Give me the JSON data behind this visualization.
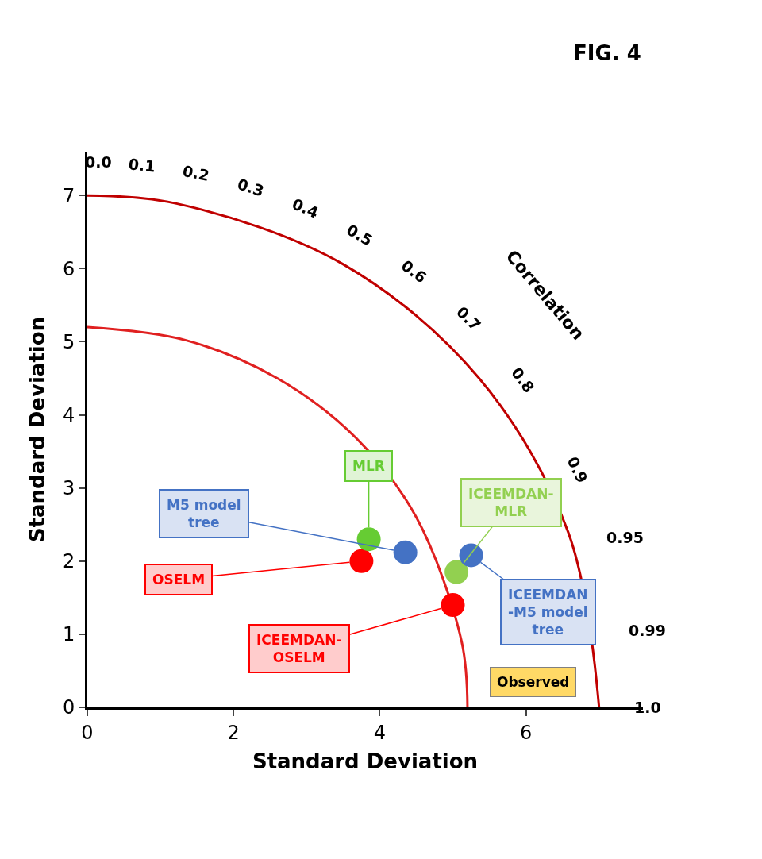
{
  "chart_data": {
    "type": "scatter",
    "title": "FIG. 4",
    "xlabel": "Standard Deviation",
    "ylabel": "Standard Deviation",
    "xlim": [
      0,
      7.6
    ],
    "ylim": [
      0,
      7.6
    ],
    "xticks": [
      0,
      2,
      4,
      6
    ],
    "yticks": [
      0,
      1,
      2,
      3,
      4,
      5,
      6,
      7
    ],
    "marker": "circle",
    "legend": false,
    "series": [
      {
        "name": "OSELM",
        "color": "#ff0000",
        "x": [
          3.75
        ],
        "values": [
          2.0
        ]
      },
      {
        "name": "ICEEMDAN-\nOSELM",
        "color": "#ff0000",
        "x": [
          5.0
        ],
        "values": [
          1.4
        ]
      },
      {
        "name": "MLR",
        "color": "#66cc33",
        "x": [
          3.85
        ],
        "values": [
          2.3
        ]
      },
      {
        "name": "ICEEMDAN-\nMLR",
        "color": "#92d050",
        "x": [
          5.05
        ],
        "values": [
          1.85
        ]
      },
      {
        "name": "M5 model\ntree",
        "color": "#4472c4",
        "x": [
          4.35
        ],
        "values": [
          2.12
        ]
      },
      {
        "name": "ICEEMDAN\n-M5 model\ntree",
        "color": "#4472c4",
        "x": [
          5.25
        ],
        "values": [
          2.08
        ]
      },
      {
        "type": "line",
        "marker": "none",
        "color": "#c00000",
        "x": [
          7,
          6.58,
          5.36,
          3.5,
          1.22,
          0
        ],
        "values": [
          0,
          2.39,
          4.5,
          6.06,
          6.89,
          7
        ]
      },
      {
        "type": "line",
        "marker": "none",
        "color": "#e02020",
        "x": [
          5.2,
          5.12,
          4.5,
          3.68,
          2.6,
          1.35,
          0
        ],
        "values": [
          0,
          0.9,
          2.6,
          3.68,
          4.5,
          5.02,
          5.2
        ]
      }
    ],
    "annotations": [
      "0.0",
      "0.1",
      "0.2",
      "0.3",
      "0.4",
      "0.5",
      "0.6",
      "0.7",
      "0.8",
      "0.9",
      "0.95",
      "0.99",
      "1.0",
      "Correlation",
      "Observed"
    ]
  }
}
